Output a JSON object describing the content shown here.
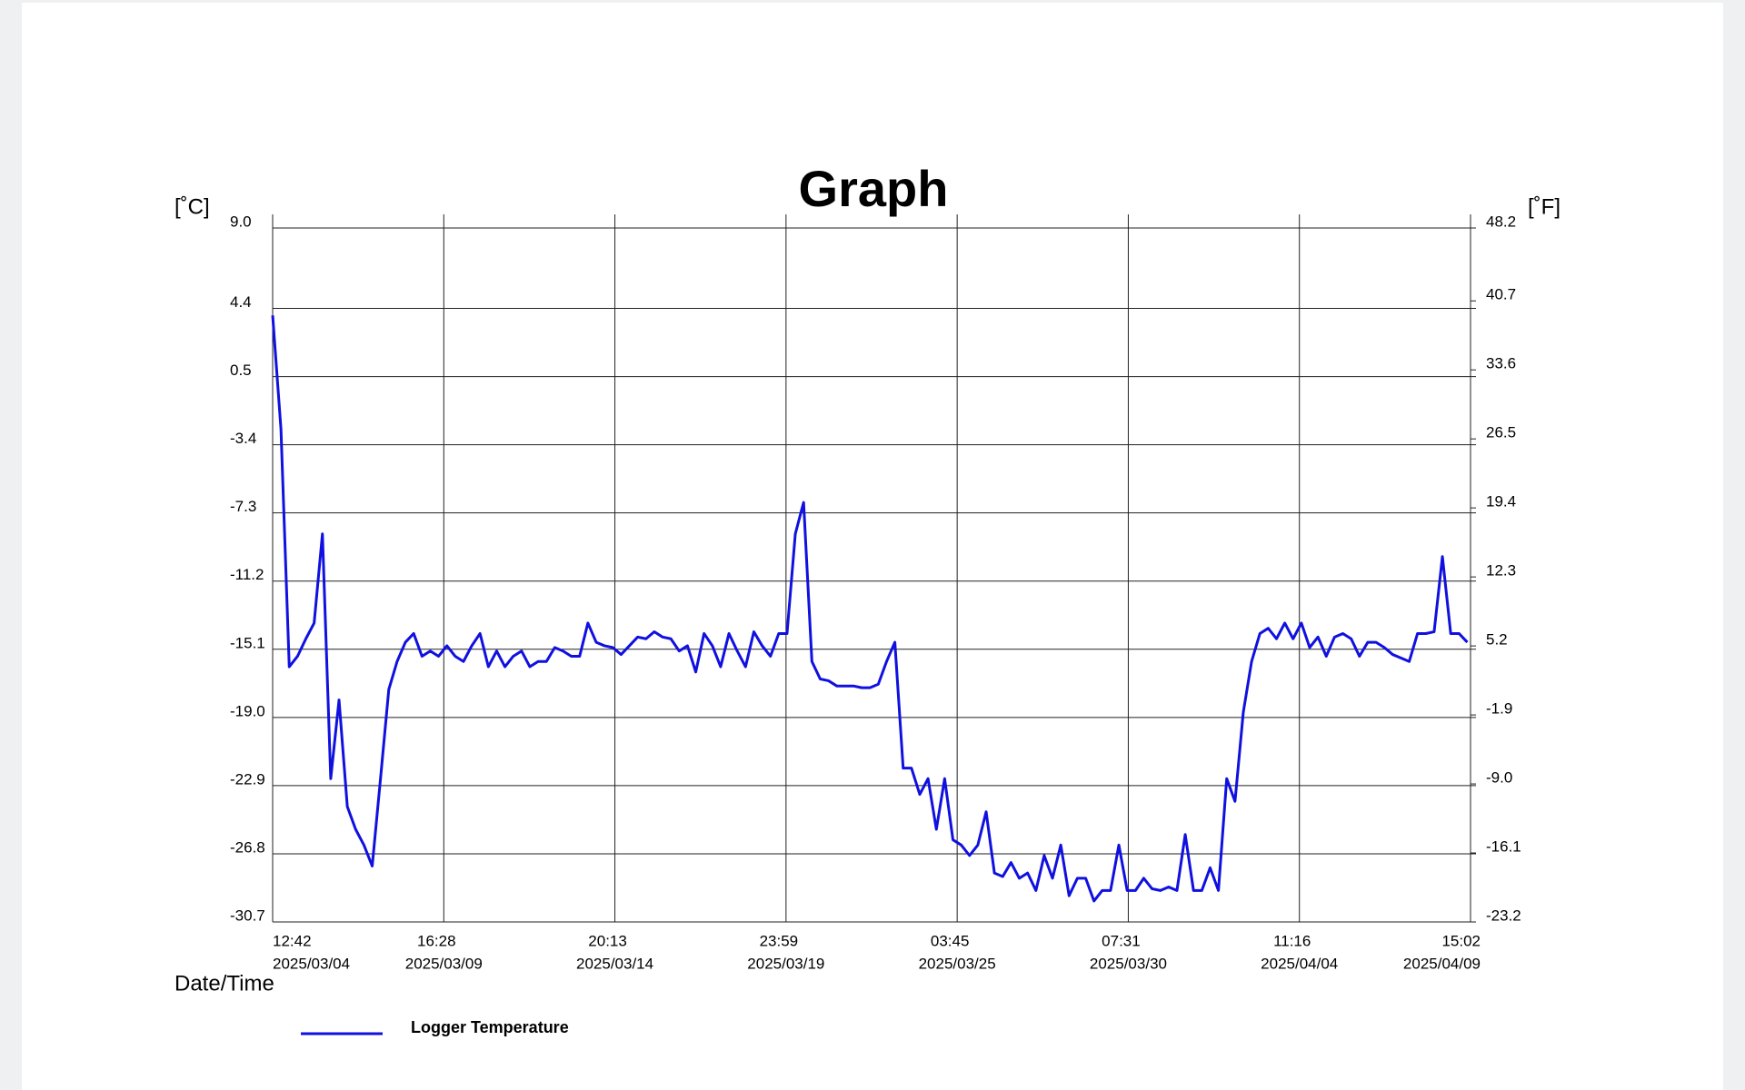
{
  "chart_data": {
    "type": "line",
    "title": "Graph",
    "y_unit": "[˚C]",
    "y2_unit": "[˚F]",
    "xlabel": "Date/Time",
    "ylim": [
      -30.7,
      9
    ],
    "yticks": [
      {
        "value": 9,
        "label": "9.0"
      },
      4.4,
      0.5,
      -3.4,
      -7.3,
      -11.2,
      -15.1,
      {
        "value": -19,
        "label": "-19.0"
      },
      -22.9,
      -26.8,
      -30.7
    ],
    "y2lim": [
      -23.2,
      48.2
    ],
    "y2ticks": [
      48.2,
      40.7,
      33.6,
      26.5,
      19.4,
      12.3,
      5.2,
      -1.9,
      {
        "value": -9,
        "label": "-9.0"
      },
      -16.1,
      -23.2
    ],
    "xlim": [
      "2025/03/04 12:42",
      "2025/04/09 15:02"
    ],
    "xticks": [
      {
        "value": "2025/03/04 12:42",
        "label": [
          "12:42",
          "2025/03/04"
        ]
      },
      {
        "value": "2025/03/09 16:28",
        "label": [
          "16:28",
          "2025/03/09"
        ]
      },
      {
        "value": "2025/03/14 20:13",
        "label": [
          "20:13",
          "2025/03/14"
        ]
      },
      {
        "value": "2025/03/19 23:59",
        "label": [
          "23:59",
          "2025/03/19"
        ]
      },
      {
        "value": "2025/03/25 03:45",
        "label": [
          "03:45",
          "2025/03/25"
        ]
      },
      {
        "value": "2025/03/30 07:31",
        "label": [
          "07:31",
          "2025/03/30"
        ]
      },
      {
        "value": "2025/04/04 11:16",
        "label": [
          "11:16",
          "2025/04/04"
        ]
      },
      {
        "value": "2025/04/09 15:02",
        "label": [
          "15:02",
          "2025/04/09"
        ]
      }
    ],
    "grid": true,
    "legend": "bottom-left",
    "x": [
      "2025/03/04 12:42",
      "2025/03/04 18:42",
      "2025/03/05 00:42",
      "2025/03/05 06:42",
      "2025/03/05 12:42",
      "2025/03/05 18:42",
      "2025/03/06 00:42",
      "2025/03/06 06:42",
      "2025/03/06 12:42",
      "2025/03/06 18:42",
      "2025/03/07 00:42",
      "2025/03/07 06:42",
      "2025/03/07 12:42",
      "2025/03/07 18:42",
      "2025/03/08 00:42",
      "2025/03/08 06:42",
      "2025/03/08 12:42",
      "2025/03/08 18:42",
      "2025/03/09 00:42",
      "2025/03/09 06:42",
      "2025/03/09 12:42",
      "2025/03/09 18:42",
      "2025/03/10 00:42",
      "2025/03/10 06:42",
      "2025/03/10 12:42",
      "2025/03/10 18:42",
      "2025/03/11 00:42",
      "2025/03/11 06:42",
      "2025/03/11 12:42",
      "2025/03/11 18:42",
      "2025/03/12 00:42",
      "2025/03/12 06:42",
      "2025/03/12 12:42",
      "2025/03/12 18:42",
      "2025/03/13 00:42",
      "2025/03/13 06:42",
      "2025/03/13 12:42",
      "2025/03/13 18:42",
      "2025/03/14 00:42",
      "2025/03/14 06:42",
      "2025/03/14 12:42",
      "2025/03/14 18:42",
      "2025/03/15 00:42",
      "2025/03/15 06:42",
      "2025/03/15 12:42",
      "2025/03/15 18:42",
      "2025/03/16 00:42",
      "2025/03/16 06:42",
      "2025/03/16 12:42",
      "2025/03/16 18:42",
      "2025/03/17 00:42",
      "2025/03/17 06:42",
      "2025/03/17 12:42",
      "2025/03/17 18:42",
      "2025/03/18 00:42",
      "2025/03/18 06:42",
      "2025/03/18 12:42",
      "2025/03/18 18:42",
      "2025/03/19 00:42",
      "2025/03/19 06:42",
      "2025/03/19 12:42",
      "2025/03/19 18:42",
      "2025/03/20 00:42",
      "2025/03/20 06:42",
      "2025/03/20 12:42",
      "2025/03/20 18:42",
      "2025/03/21 00:42",
      "2025/03/21 06:42",
      "2025/03/21 12:42",
      "2025/03/21 18:42",
      "2025/03/22 00:42",
      "2025/03/22 06:42",
      "2025/03/22 12:42",
      "2025/03/22 18:42",
      "2025/03/23 00:42",
      "2025/03/23 06:42",
      "2025/03/23 12:42",
      "2025/03/23 18:42",
      "2025/03/24 00:42",
      "2025/03/24 06:42",
      "2025/03/24 12:42",
      "2025/03/24 18:42",
      "2025/03/25 00:42",
      "2025/03/25 06:42",
      "2025/03/25 12:42",
      "2025/03/25 18:42",
      "2025/03/26 00:42",
      "2025/03/26 06:42",
      "2025/03/26 12:42",
      "2025/03/26 18:42",
      "2025/03/27 00:42",
      "2025/03/27 06:42",
      "2025/03/27 12:42",
      "2025/03/27 18:42",
      "2025/03/28 00:42",
      "2025/03/28 06:42",
      "2025/03/28 12:42",
      "2025/03/28 18:42",
      "2025/03/29 00:42",
      "2025/03/29 06:42",
      "2025/03/29 12:42",
      "2025/03/29 18:42",
      "2025/03/30 00:42",
      "2025/03/30 06:42",
      "2025/03/30 12:42",
      "2025/03/30 18:42",
      "2025/03/31 00:42",
      "2025/03/31 06:42",
      "2025/03/31 12:42",
      "2025/03/31 18:42",
      "2025/04/01 00:42",
      "2025/04/01 06:42",
      "2025/04/01 12:42",
      "2025/04/01 18:42",
      "2025/04/02 00:42",
      "2025/04/02 06:42",
      "2025/04/02 12:42",
      "2025/04/02 18:42",
      "2025/04/03 00:42",
      "2025/04/03 06:42",
      "2025/04/03 12:42",
      "2025/04/03 18:42",
      "2025/04/04 00:42",
      "2025/04/04 06:42",
      "2025/04/04 12:42",
      "2025/04/04 18:42",
      "2025/04/05 00:42",
      "2025/04/05 06:42",
      "2025/04/05 12:42",
      "2025/04/05 18:42",
      "2025/04/06 00:42",
      "2025/04/06 06:42",
      "2025/04/06 12:42",
      "2025/04/06 18:42",
      "2025/04/07 00:42",
      "2025/04/07 06:42",
      "2025/04/07 12:42",
      "2025/04/07 18:42",
      "2025/04/08 00:42",
      "2025/04/08 06:42",
      "2025/04/08 12:42",
      "2025/04/08 18:42",
      "2025/04/09 00:42",
      "2025/04/09 06:42",
      "2025/04/09 12:42"
    ],
    "series": [
      {
        "name": "Logger Temperature",
        "color": "#1010e0",
        "values": [
          4.0,
          -2.5,
          -16.1,
          -15.5,
          -14.5,
          -13.6,
          -8.5,
          -22.5,
          -18.0,
          -24.1,
          -25.4,
          -26.3,
          -27.5,
          -22.5,
          -17.4,
          -15.8,
          -14.7,
          -14.2,
          -15.5,
          -15.2,
          -15.5,
          -14.9,
          -15.5,
          -15.8,
          -14.9,
          -14.2,
          -16.1,
          -15.2,
          -16.1,
          -15.5,
          -15.2,
          -16.1,
          -15.8,
          -15.8,
          -15.0,
          -15.2,
          -15.5,
          -15.5,
          -13.6,
          -14.7,
          -14.9,
          -15.0,
          -15.4,
          -14.9,
          -14.4,
          -14.5,
          -14.1,
          -14.4,
          -14.5,
          -15.2,
          -14.9,
          -16.4,
          -14.2,
          -14.9,
          -16.1,
          -14.2,
          -15.2,
          -16.1,
          -14.1,
          -14.9,
          -15.5,
          -14.2,
          -14.2,
          -8.5,
          -6.7,
          -15.8,
          -16.8,
          -16.9,
          -17.2,
          -17.2,
          -17.2,
          -17.3,
          -17.3,
          -17.1,
          -15.8,
          -14.7,
          -21.9,
          -21.9,
          -23.4,
          -22.5,
          -25.4,
          -22.5,
          -26.0,
          -26.3,
          -26.9,
          -26.3,
          -24.4,
          -27.9,
          -28.1,
          -27.3,
          -28.2,
          -27.9,
          -28.9,
          -26.9,
          -28.2,
          -26.3,
          -29.2,
          -28.2,
          -28.2,
          -29.5,
          -28.9,
          -28.9,
          -26.3,
          -28.9,
          -28.9,
          -28.2,
          -28.8,
          -28.9,
          -28.7,
          -28.9,
          -25.7,
          -28.9,
          -28.9,
          -27.6,
          -28.9,
          -22.5,
          -23.8,
          -18.7,
          -15.8,
          -14.2,
          -13.9,
          -14.5,
          -13.6,
          -14.5,
          -13.6,
          -15.0,
          -14.4,
          -15.5,
          -14.4,
          -14.2,
          -14.5,
          -15.5,
          -14.7,
          -14.7,
          -15.0,
          -15.4,
          -15.6,
          -15.8,
          -14.2,
          -14.2,
          -14.1,
          -9.8,
          -14.2,
          -14.2,
          -14.7
        ]
      }
    ]
  }
}
